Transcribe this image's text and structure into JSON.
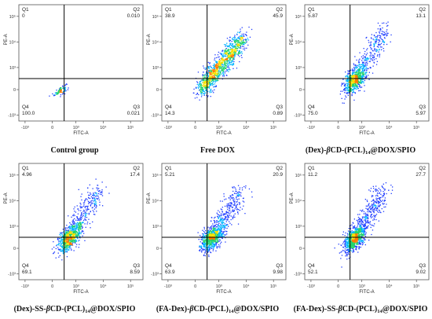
{
  "chart_data": [
    {
      "type": "scatter",
      "caption": "Control group",
      "x_label": "FITC-A",
      "y_label": "PE-A",
      "quadrants": {
        "Q1": "0",
        "Q2": "0.010",
        "Q3": "0.021",
        "Q4": "100.0"
      },
      "x_ticks": [
        "-10³",
        "0",
        "10³",
        "10⁴",
        "10⁵"
      ],
      "y_ticks": [
        "-10³",
        "0",
        "10³",
        "10⁴",
        "10⁵"
      ],
      "x_gate_value": 500,
      "y_gate_value": 500,
      "pattern": "control",
      "dot_count": 90
    },
    {
      "type": "scatter",
      "caption": "Free DOX",
      "x_label": "FITC-A",
      "y_label": "PE-A",
      "quadrants": {
        "Q1": "38.9",
        "Q2": "45.9",
        "Q3": "0.89",
        "Q4": "14.3"
      },
      "x_ticks": [
        "-10³",
        "0",
        "10³",
        "10⁴",
        "10⁵"
      ],
      "y_ticks": [
        "-10³",
        "0",
        "10³",
        "10⁴",
        "10⁵"
      ],
      "x_gate_value": 500,
      "y_gate_value": 500,
      "pattern": "diagonal",
      "dot_count": 1100
    },
    {
      "type": "scatter",
      "caption": "(Dex)-{b}CD-(PCL){14}@DOX/SPIO",
      "x_label": "FITC-A",
      "y_label": "PE-A",
      "quadrants": {
        "Q1": "5.87",
        "Q2": "13.1",
        "Q3": "5.97",
        "Q4": "75.0"
      },
      "x_ticks": [
        "-10³",
        "0",
        "10³",
        "10⁴",
        "10⁵"
      ],
      "y_ticks": [
        "-10³",
        "0",
        "10³",
        "10⁴",
        "10⁵"
      ],
      "x_gate_value": 500,
      "y_gate_value": 500,
      "pattern": "cluster",
      "dot_count": 900
    },
    {
      "type": "scatter",
      "caption": "(Dex)-SS-{b}CD-(PCL){14}@DOX/SPIO",
      "x_label": "FITC-A",
      "y_label": "PE-A",
      "quadrants": {
        "Q1": "4.96",
        "Q2": "17.4",
        "Q3": "8.59",
        "Q4": "69.1"
      },
      "x_ticks": [
        "-10³",
        "0",
        "10³",
        "10⁴",
        "10⁵"
      ],
      "y_ticks": [
        "-10³",
        "0",
        "10³",
        "10⁴",
        "10⁵"
      ],
      "x_gate_value": 500,
      "y_gate_value": 500,
      "pattern": "cluster",
      "dot_count": 950
    },
    {
      "type": "scatter",
      "caption": "(FA-Dex)-{b}CD-(PCL){14}@DOX/SPIO",
      "x_label": "FITC-A",
      "y_label": "PE-A",
      "quadrants": {
        "Q1": "5.21",
        "Q2": "20.9",
        "Q3": "9.98",
        "Q4": "63.9"
      },
      "x_ticks": [
        "-10³",
        "0",
        "10³",
        "10⁴",
        "10⁵"
      ],
      "y_ticks": [
        "-10³",
        "0",
        "10³",
        "10⁴",
        "10⁵"
      ],
      "x_gate_value": 500,
      "y_gate_value": 500,
      "pattern": "cluster",
      "dot_count": 1000
    },
    {
      "type": "scatter",
      "caption": "(FA-Dex)-SS-{b}CD-(PCL){14}@DOX/SPIO",
      "x_label": "FITC-A",
      "y_label": "PE-A",
      "quadrants": {
        "Q1": "11.2",
        "Q2": "27.7",
        "Q3": "9.02",
        "Q4": "52.1"
      },
      "x_ticks": [
        "-10³",
        "0",
        "10³",
        "10⁴",
        "10⁵"
      ],
      "y_ticks": [
        "-10³",
        "0",
        "10³",
        "10⁴",
        "10⁵"
      ],
      "x_gate_value": 500,
      "y_gate_value": 500,
      "pattern": "cluster",
      "dot_count": 1050
    }
  ],
  "colors": {
    "density_low": "#1f3cff",
    "density_mid_low": "#00b4ff",
    "density_mid": "#22d36b",
    "density_high": "#f5e000",
    "density_peak": "#ff7a00",
    "axes": "#555555",
    "gate": "#000000"
  }
}
